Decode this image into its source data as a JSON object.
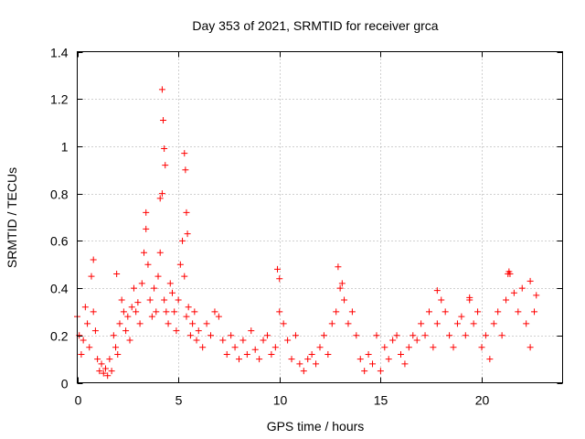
{
  "chart_data": {
    "type": "scatter",
    "title": "Day 353 of 2021, SRMTID for receiver grca",
    "xlabel": "GPS time / hours",
    "ylabel": "SRMTID / TECUs",
    "xlim": [
      0,
      24
    ],
    "ylim": [
      0,
      1.4
    ],
    "xticks": [
      0,
      5,
      10,
      15,
      20
    ],
    "yticks": [
      0,
      0.2,
      0.4,
      0.6,
      0.8,
      1,
      1.2,
      1.4
    ],
    "xtick_labels": [
      "0",
      "5",
      "10",
      "15",
      "20"
    ],
    "ytick_labels": [
      "0",
      "0.2",
      "0.4",
      "0.6",
      "0.8",
      "1",
      "1.2",
      "1.4"
    ],
    "grid": true,
    "marker": "+",
    "color": "#ff0000",
    "series": [
      {
        "name": "SRMTID",
        "x": [
          0.0,
          0.1,
          0.2,
          0.3,
          0.4,
          0.5,
          0.6,
          0.7,
          0.8,
          0.9,
          1.0,
          1.1,
          1.2,
          1.3,
          1.4,
          1.5,
          1.6,
          1.7,
          1.8,
          1.9,
          2.0,
          2.1,
          2.2,
          2.3,
          2.4,
          2.5,
          2.6,
          2.7,
          2.8,
          2.9,
          3.0,
          3.1,
          3.2,
          3.3,
          3.4,
          3.5,
          3.6,
          3.7,
          3.8,
          3.9,
          4.0,
          4.1,
          4.2,
          4.3,
          4.4,
          4.5,
          4.6,
          4.7,
          4.8,
          4.9,
          5.0,
          5.1,
          5.2,
          5.3,
          5.4,
          5.5,
          5.6,
          5.7,
          5.8,
          5.9,
          6.0,
          6.2,
          6.4,
          6.6,
          6.8,
          7.0,
          7.2,
          7.4,
          7.6,
          7.8,
          8.0,
          8.2,
          8.4,
          8.6,
          8.8,
          9.0,
          9.2,
          9.4,
          9.6,
          9.8,
          10.0,
          10.2,
          10.4,
          10.6,
          10.8,
          11.0,
          11.2,
          11.4,
          11.6,
          11.8,
          12.0,
          12.2,
          12.4,
          12.6,
          12.8,
          13.0,
          13.2,
          13.4,
          13.6,
          13.8,
          14.0,
          14.2,
          14.4,
          14.6,
          14.8,
          15.0,
          15.2,
          15.4,
          15.6,
          15.8,
          16.0,
          16.2,
          16.4,
          16.6,
          16.8,
          17.0,
          17.2,
          17.4,
          17.6,
          17.8,
          18.0,
          18.2,
          18.4,
          18.6,
          18.8,
          19.0,
          19.2,
          19.4,
          19.6,
          19.8,
          20.0,
          20.2,
          20.4,
          20.6,
          20.8,
          21.0,
          21.2,
          21.4,
          21.6,
          21.8,
          22.0,
          22.2,
          22.4,
          22.6,
          4.2,
          4.25,
          4.3,
          4.35,
          5.3,
          5.35,
          5.4,
          0.8,
          1.95,
          3.4,
          4.1,
          5.45,
          9.9,
          10.0,
          12.9,
          13.1,
          17.8,
          19.4,
          21.3,
          21.35,
          22.4,
          22.7
        ],
        "y": [
          0.28,
          0.2,
          0.12,
          0.18,
          0.32,
          0.25,
          0.15,
          0.45,
          0.3,
          0.22,
          0.1,
          0.05,
          0.08,
          0.04,
          0.06,
          0.03,
          0.1,
          0.05,
          0.2,
          0.15,
          0.12,
          0.25,
          0.35,
          0.3,
          0.22,
          0.28,
          0.18,
          0.32,
          0.4,
          0.3,
          0.34,
          0.25,
          0.42,
          0.55,
          0.65,
          0.5,
          0.35,
          0.28,
          0.4,
          0.3,
          0.45,
          0.55,
          0.8,
          0.35,
          0.3,
          0.25,
          0.42,
          0.38,
          0.3,
          0.22,
          0.35,
          0.5,
          0.6,
          0.45,
          0.28,
          0.32,
          0.2,
          0.25,
          0.3,
          0.18,
          0.22,
          0.15,
          0.25,
          0.2,
          0.3,
          0.28,
          0.18,
          0.12,
          0.2,
          0.15,
          0.1,
          0.18,
          0.12,
          0.22,
          0.14,
          0.1,
          0.18,
          0.2,
          0.12,
          0.15,
          0.3,
          0.25,
          0.18,
          0.1,
          0.2,
          0.08,
          0.05,
          0.1,
          0.12,
          0.08,
          0.15,
          0.2,
          0.12,
          0.25,
          0.3,
          0.4,
          0.35,
          0.25,
          0.3,
          0.2,
          0.1,
          0.05,
          0.12,
          0.08,
          0.2,
          0.05,
          0.15,
          0.1,
          0.18,
          0.2,
          0.12,
          0.08,
          0.15,
          0.2,
          0.18,
          0.25,
          0.2,
          0.3,
          0.15,
          0.25,
          0.35,
          0.3,
          0.2,
          0.15,
          0.25,
          0.28,
          0.2,
          0.35,
          0.25,
          0.3,
          0.15,
          0.2,
          0.1,
          0.25,
          0.3,
          0.2,
          0.35,
          0.46,
          0.38,
          0.3,
          0.4,
          0.25,
          0.15,
          0.3,
          1.24,
          1.11,
          0.99,
          0.92,
          0.97,
          0.9,
          0.72,
          0.52,
          0.46,
          0.72,
          0.78,
          0.63,
          0.48,
          0.44,
          0.49,
          0.42,
          0.39,
          0.36,
          0.46,
          0.47,
          0.43,
          0.37
        ]
      }
    ]
  }
}
